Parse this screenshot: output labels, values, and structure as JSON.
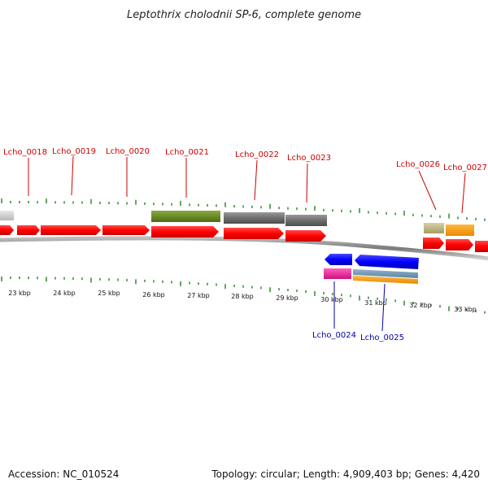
{
  "title": "Leptothrix cholodnii SP-6, complete genome",
  "accession": "Accession: NC_010524",
  "summary": "Topology: circular; Length: 4,909,403 bp; Genes: 4,420",
  "colors": {
    "top_label": "#cc0000",
    "bottom_label": "#0000aa",
    "tick": "#2e8b2e",
    "backbone": "#8a8a8a"
  },
  "scale_labels": [
    "23 kbp",
    "24 kbp",
    "25 kbp",
    "26 kbp",
    "27 kbp",
    "28 kbp",
    "29 kbp",
    "30 kbp",
    "31 kbp",
    "32 kbp",
    "33 kbp"
  ],
  "top_genes": [
    {
      "name": "Lcho_0018"
    },
    {
      "name": "Lcho_0019"
    },
    {
      "name": "Lcho_0020"
    },
    {
      "name": "Lcho_0021"
    },
    {
      "name": "Lcho_0022"
    },
    {
      "name": "Lcho_0023"
    },
    {
      "name": "Lcho_0026"
    },
    {
      "name": "Lcho_0027"
    }
  ],
  "bottom_genes": [
    {
      "name": "Lcho_0024"
    },
    {
      "name": "Lcho_0025"
    }
  ]
}
